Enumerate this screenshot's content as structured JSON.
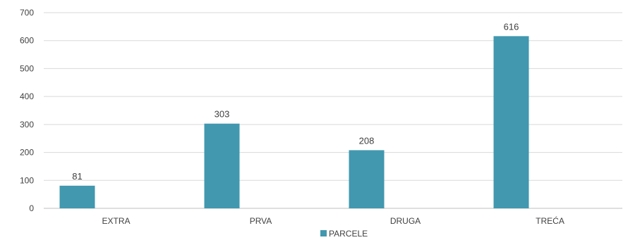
{
  "chart_data": {
    "type": "bar",
    "categories": [
      "EXTRA",
      "PRVA",
      "DRUGA",
      "TREĆA"
    ],
    "series": [
      {
        "name": "PARCELE",
        "values": [
          81,
          303,
          208,
          616
        ],
        "color": "#4198AF"
      }
    ],
    "data_labels": [
      "81",
      "303",
      "208",
      "616"
    ],
    "ylim": [
      0,
      700
    ],
    "yticks": [
      0,
      100,
      200,
      300,
      400,
      500,
      600,
      700
    ],
    "grid": true,
    "legend_position": "bottom-center"
  }
}
